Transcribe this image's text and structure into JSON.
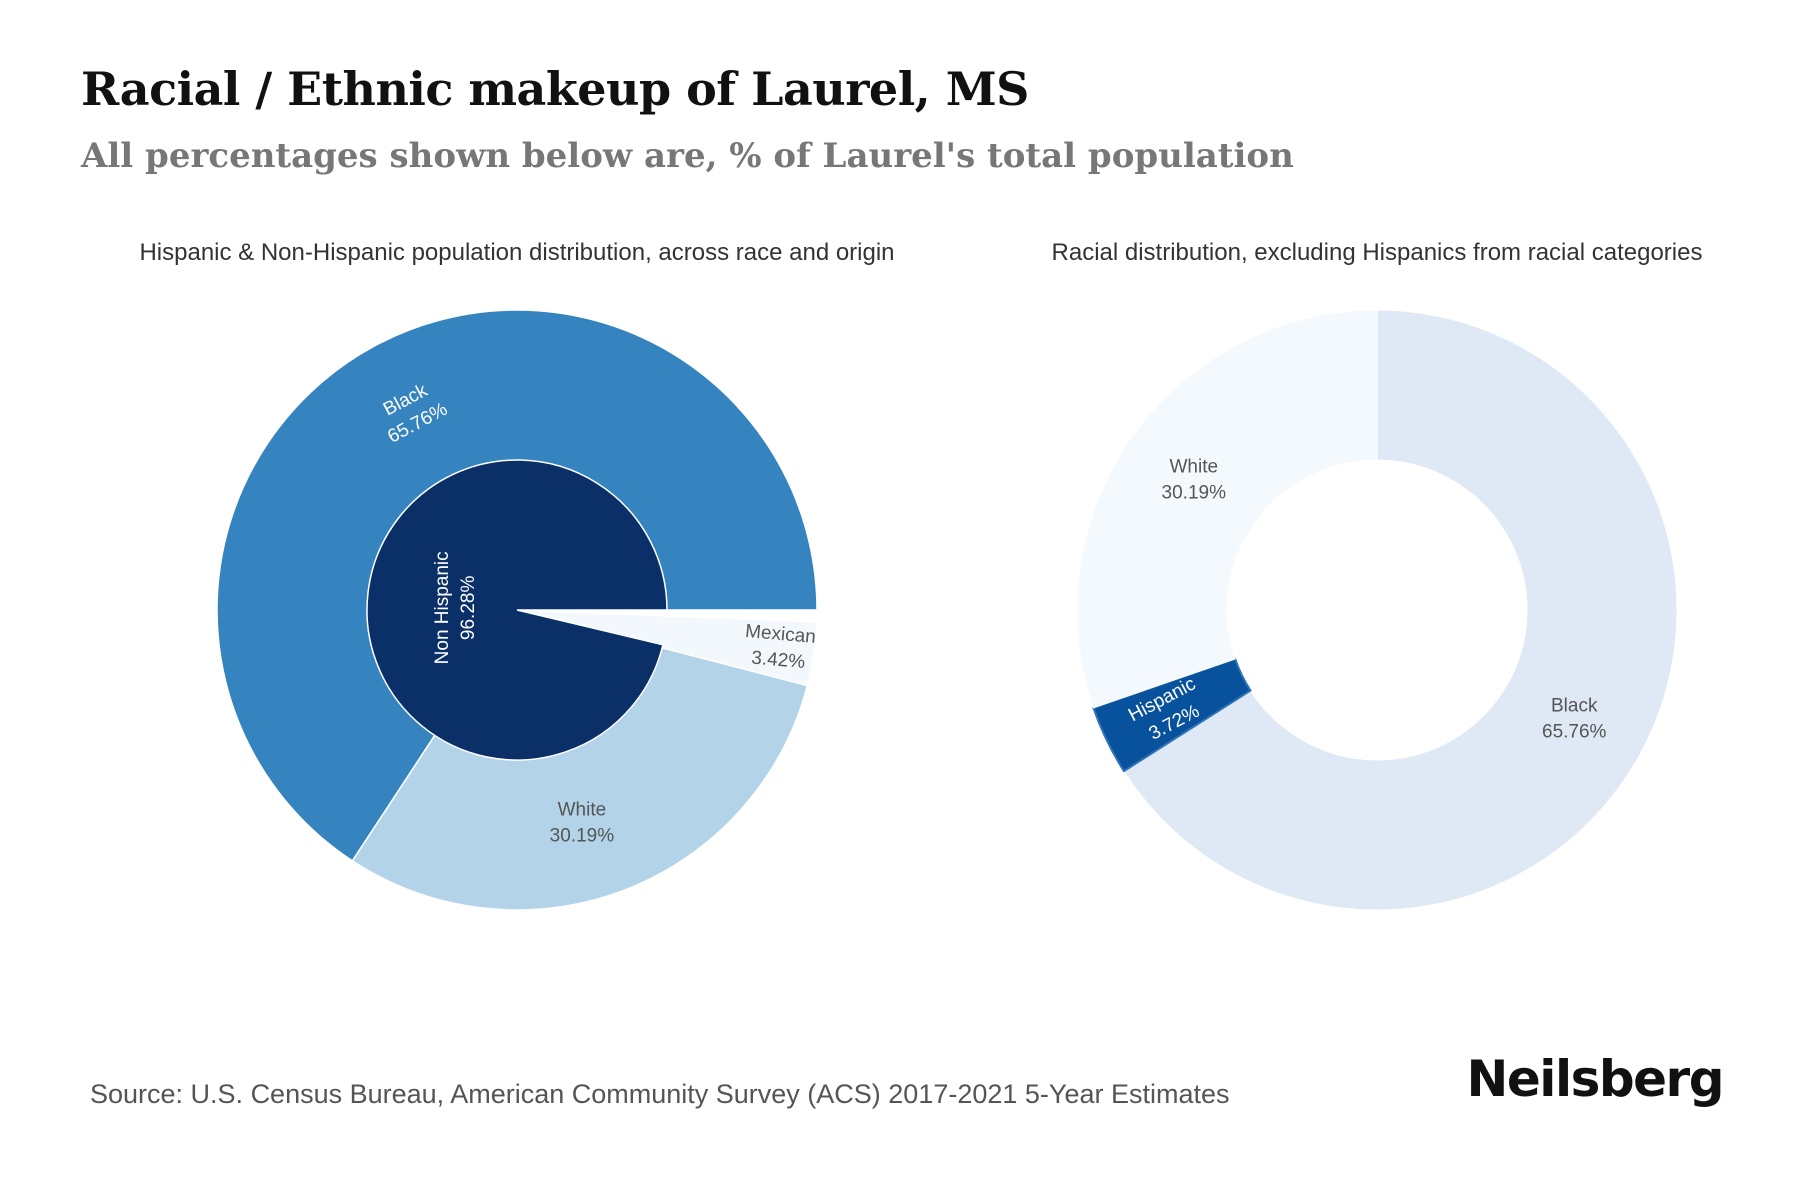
{
  "header": {
    "title": "Racial / Ethnic makeup of Laurel, MS",
    "subtitle": "All percentages shown below are, % of Laurel's total population"
  },
  "footer": {
    "source": "Source: U.S. Census Bureau, American Community Survey (ACS) 2017-2021 5-Year Estimates",
    "brand": "Neilsberg"
  },
  "colors": {
    "black_outer": "#3584bf",
    "white_outer": "#b3d3e8",
    "mexican_outer": "#f3f8fd",
    "non_hispanic_inner": "#0b3068",
    "right_white": "#f4f9fe",
    "right_black": "#dee9f5",
    "right_hispanic": "#08519c",
    "right_hispanic_edge": "#2f72b6"
  },
  "chart_data": [
    {
      "type": "pie",
      "subtype": "nested-donut",
      "title": "Hispanic & Non-Hispanic population distribution, across race and origin",
      "inner": [
        {
          "label": "Non Hispanic",
          "value": 96.28,
          "value_label": "96.28%"
        }
      ],
      "outer": [
        {
          "label": "Black",
          "value": 65.76,
          "value_label": "65.76%"
        },
        {
          "label": "White",
          "value": 30.19,
          "value_label": "30.19%"
        },
        {
          "label": "Mexican",
          "value": 3.42,
          "value_label": "3.42%"
        }
      ]
    },
    {
      "type": "pie",
      "subtype": "donut",
      "title": "Racial distribution, excluding Hispanics from racial categories",
      "slices": [
        {
          "label": "Black",
          "value": 65.76,
          "value_label": "65.76%"
        },
        {
          "label": "Hispanic",
          "value": 3.72,
          "value_label": "3.72%"
        },
        {
          "label": "White",
          "value": 30.19,
          "value_label": "30.19%"
        }
      ]
    }
  ]
}
